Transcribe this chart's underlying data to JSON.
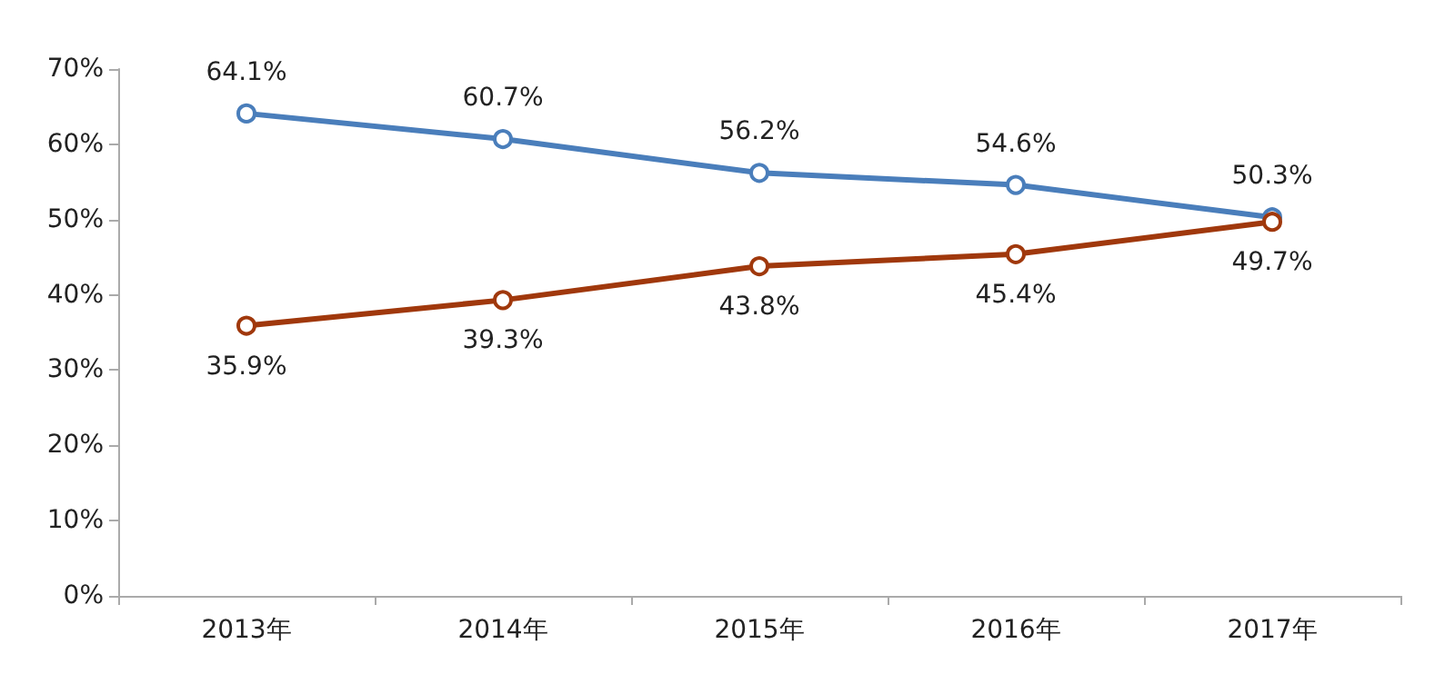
{
  "chart_data": {
    "type": "line",
    "categories": [
      "2013年",
      "2014年",
      "2015年",
      "2016年",
      "2017年"
    ],
    "series": [
      {
        "color": "#4a7ebb",
        "values": [
          64.1,
          60.7,
          56.2,
          54.6,
          50.3
        ],
        "value_labels": [
          "64.1%",
          "60.7%",
          "56.2%",
          "54.6%",
          "50.3%"
        ]
      },
      {
        "color": "#a0380c",
        "values": [
          35.9,
          39.3,
          43.8,
          45.4,
          49.7
        ],
        "value_labels": [
          "35.9%",
          "39.3%",
          "43.8%",
          "45.4%",
          "49.7%"
        ]
      }
    ],
    "ylim": [
      0,
      70
    ],
    "yticks": [
      {
        "value": 0,
        "label": "0%"
      },
      {
        "value": 10,
        "label": "10%"
      },
      {
        "value": 20,
        "label": "20%"
      },
      {
        "value": 30,
        "label": "30%"
      },
      {
        "value": 40,
        "label": "40%"
      },
      {
        "value": 50,
        "label": "50%"
      },
      {
        "value": 60,
        "label": "60%"
      },
      {
        "value": 70,
        "label": "70%"
      }
    ],
    "marker": "circle"
  }
}
